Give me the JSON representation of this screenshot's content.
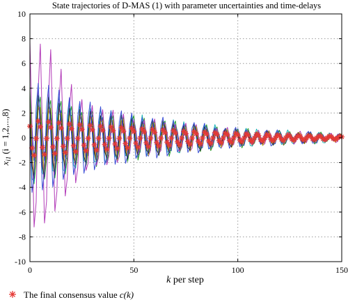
{
  "chart_data": {
    "type": "line",
    "title": "State trajectories of D-MAS (1) with parameter uncertainties and time-delays",
    "xlabel": {
      "main": "k",
      "suffix": " per step"
    },
    "ylabel": {
      "main": "x",
      "sub": "i1",
      "rest": " (i = 1,2,...,8)"
    },
    "xlim": [
      0,
      150
    ],
    "ylim": [
      -10,
      10
    ],
    "xticks": [
      "0",
      "50",
      "100",
      "150"
    ],
    "yticks": [
      "10",
      "8",
      "6",
      "4",
      "2",
      "0",
      "-2",
      "-4",
      "-6",
      "-8",
      "-10"
    ],
    "grid": true,
    "period": 5,
    "consensus_amplitude": [
      [
        0,
        1.5
      ],
      [
        10,
        1.35
      ],
      [
        25,
        1.1
      ],
      [
        50,
        0.8
      ],
      [
        75,
        0.55
      ],
      [
        100,
        0.35
      ],
      [
        125,
        0.2
      ],
      [
        150,
        0.12
      ]
    ],
    "series": [
      {
        "color": "#1f3fbf",
        "phase": 0.0,
        "amp": [
          [
            0,
            2.5
          ],
          [
            25,
            1.8
          ],
          [
            50,
            1.4
          ],
          [
            75,
            1.0
          ],
          [
            100,
            0.6
          ],
          [
            150,
            0.25
          ]
        ]
      },
      {
        "color": "#2a9d2a",
        "phase": 0.4,
        "amp": [
          [
            0,
            4.0
          ],
          [
            25,
            2.4
          ],
          [
            50,
            1.8
          ],
          [
            75,
            1.2
          ],
          [
            100,
            0.7
          ],
          [
            150,
            0.25
          ]
        ]
      },
      {
        "color": "#c0392b",
        "phase": 0.8,
        "amp": [
          [
            0,
            3.0
          ],
          [
            25,
            2.0
          ],
          [
            50,
            1.5
          ],
          [
            75,
            1.0
          ],
          [
            100,
            0.6
          ],
          [
            150,
            0.2
          ]
        ]
      },
      {
        "color": "#17b3b3",
        "phase": 1.2,
        "amp": [
          [
            0,
            4.2
          ],
          [
            25,
            2.6
          ],
          [
            50,
            1.8
          ],
          [
            75,
            1.2
          ],
          [
            100,
            0.7
          ],
          [
            150,
            0.25
          ]
        ]
      },
      {
        "color": "#b23ab8",
        "phase": 0.2,
        "amp": [
          [
            0,
            8.0
          ],
          [
            10,
            7.2
          ],
          [
            25,
            3.0
          ],
          [
            50,
            1.6
          ],
          [
            75,
            1.1
          ],
          [
            100,
            0.6
          ],
          [
            150,
            0.25
          ]
        ]
      },
      {
        "color": "#b8b820",
        "phase": 0.6,
        "amp": [
          [
            0,
            3.2
          ],
          [
            25,
            2.0
          ],
          [
            50,
            1.5
          ],
          [
            75,
            1.0
          ],
          [
            100,
            0.6
          ],
          [
            150,
            0.2
          ]
        ]
      },
      {
        "color": "#222222",
        "phase": 1.0,
        "amp": [
          [
            0,
            3.8
          ],
          [
            25,
            2.2
          ],
          [
            50,
            1.6
          ],
          [
            75,
            1.1
          ],
          [
            100,
            0.6
          ],
          [
            150,
            0.2
          ]
        ]
      },
      {
        "color": "#3b4fd6",
        "phase": 1.5,
        "amp": [
          [
            0,
            5.0
          ],
          [
            25,
            3.0
          ],
          [
            50,
            1.9
          ],
          [
            75,
            1.3
          ],
          [
            100,
            0.7
          ],
          [
            150,
            0.25
          ]
        ]
      }
    ],
    "legend": {
      "position": "bottom-left",
      "entries": [
        {
          "text": "The  final consensus value ",
          "expr": "c(k)",
          "color": "#e53935"
        }
      ]
    }
  }
}
